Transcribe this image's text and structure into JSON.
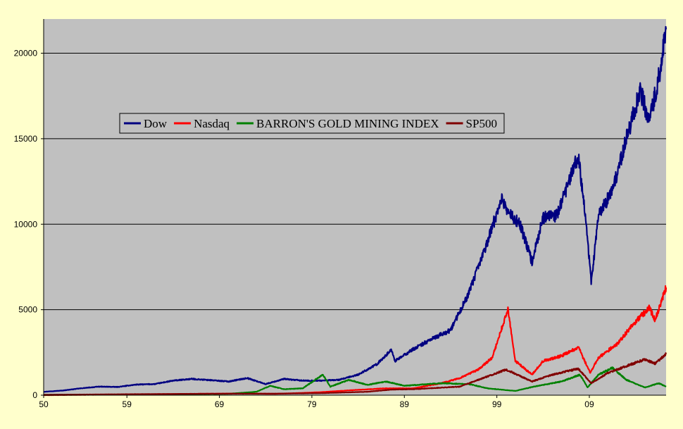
{
  "chart_data": {
    "type": "line",
    "title": "",
    "xlabel": "",
    "ylabel": "",
    "x_tick_labels": [
      "50",
      "59",
      "69",
      "79",
      "89",
      "99",
      "09"
    ],
    "x_tick_years": [
      1950,
      1959,
      1969,
      1979,
      1989,
      1999,
      2009
    ],
    "xlim": [
      1950,
      2017.3
    ],
    "ylim": [
      0,
      22000
    ],
    "y_ticks": [
      0,
      5000,
      10000,
      15000,
      20000
    ],
    "grid": "horizontal",
    "legend_position": "top-left",
    "colors": {
      "plot_background": "#C0C0C0",
      "page_background": "#FFFFCC",
      "gridline": "#000000"
    },
    "series": [
      {
        "name": "Dow",
        "color": "#000080",
        "points": [
          [
            1950,
            200
          ],
          [
            1952,
            270
          ],
          [
            1954,
            400
          ],
          [
            1956,
            500
          ],
          [
            1958,
            480
          ],
          [
            1960,
            620
          ],
          [
            1962,
            650
          ],
          [
            1964,
            850
          ],
          [
            1966,
            950
          ],
          [
            1968,
            880
          ],
          [
            1970,
            800
          ],
          [
            1972,
            1000
          ],
          [
            1974,
            650
          ],
          [
            1976,
            950
          ],
          [
            1978,
            850
          ],
          [
            1980,
            850
          ],
          [
            1982,
            900
          ],
          [
            1984,
            1200
          ],
          [
            1986,
            1800
          ],
          [
            1987.6,
            2650
          ],
          [
            1988,
            2000
          ],
          [
            1990,
            2700
          ],
          [
            1992,
            3300
          ],
          [
            1994,
            3800
          ],
          [
            1996,
            6000
          ],
          [
            1998,
            9000
          ],
          [
            1999.5,
            11500
          ],
          [
            2000.5,
            10500
          ],
          [
            2001.5,
            10000
          ],
          [
            2002.8,
            7800
          ],
          [
            2004,
            10400
          ],
          [
            2005.5,
            10500
          ],
          [
            2007.8,
            14000
          ],
          [
            2008.5,
            11000
          ],
          [
            2009.2,
            6600
          ],
          [
            2010,
            10500
          ],
          [
            2011.5,
            12000
          ],
          [
            2013,
            15000
          ],
          [
            2014.5,
            17800
          ],
          [
            2015.5,
            16000
          ],
          [
            2016.2,
            17800
          ],
          [
            2016.8,
            19500
          ],
          [
            2017.3,
            21400
          ]
        ]
      },
      {
        "name": "Nasdaq",
        "color": "#FF0000",
        "points": [
          [
            1950,
            0
          ],
          [
            1971,
            100
          ],
          [
            1975,
            80
          ],
          [
            1978,
            130
          ],
          [
            1980,
            180
          ],
          [
            1983,
            280
          ],
          [
            1987,
            400
          ],
          [
            1990,
            400
          ],
          [
            1993,
            700
          ],
          [
            1995,
            1000
          ],
          [
            1997,
            1500
          ],
          [
            1998.5,
            2200
          ],
          [
            2000.2,
            5000
          ],
          [
            2001,
            2000
          ],
          [
            2002.8,
            1200
          ],
          [
            2004,
            2000
          ],
          [
            2006,
            2300
          ],
          [
            2007.8,
            2800
          ],
          [
            2009.1,
            1300
          ],
          [
            2010,
            2200
          ],
          [
            2012,
            3000
          ],
          [
            2014,
            4300
          ],
          [
            2015.5,
            5100
          ],
          [
            2016.1,
            4400
          ],
          [
            2017.3,
            6300
          ]
        ]
      },
      {
        "name": "BARRON'S GOLD MINING INDEX",
        "color": "#008000",
        "points": [
          [
            1950,
            20
          ],
          [
            1960,
            40
          ],
          [
            1965,
            60
          ],
          [
            1970,
            80
          ],
          [
            1973,
            200
          ],
          [
            1974.5,
            550
          ],
          [
            1976,
            350
          ],
          [
            1978,
            400
          ],
          [
            1980.2,
            1200
          ],
          [
            1981,
            500
          ],
          [
            1983,
            900
          ],
          [
            1985,
            600
          ],
          [
            1987,
            800
          ],
          [
            1989,
            550
          ],
          [
            1993,
            700
          ],
          [
            1996,
            650
          ],
          [
            1998,
            400
          ],
          [
            2001,
            250
          ],
          [
            2003,
            500
          ],
          [
            2006,
            800
          ],
          [
            2008,
            1200
          ],
          [
            2008.8,
            450
          ],
          [
            2010,
            1200
          ],
          [
            2011.5,
            1600
          ],
          [
            2013,
            900
          ],
          [
            2015,
            450
          ],
          [
            2016.5,
            700
          ],
          [
            2017.3,
            500
          ]
        ]
      },
      {
        "name": "SP500",
        "color": "#800000",
        "points": [
          [
            1950,
            20
          ],
          [
            1960,
            60
          ],
          [
            1970,
            90
          ],
          [
            1975,
            90
          ],
          [
            1980,
            120
          ],
          [
            1985,
            200
          ],
          [
            1987.6,
            330
          ],
          [
            1990,
            350
          ],
          [
            1995,
            500
          ],
          [
            1998,
            1100
          ],
          [
            2000,
            1500
          ],
          [
            2002.8,
            800
          ],
          [
            2005,
            1200
          ],
          [
            2007.8,
            1550
          ],
          [
            2009.2,
            700
          ],
          [
            2011,
            1300
          ],
          [
            2013,
            1700
          ],
          [
            2015,
            2100
          ],
          [
            2016.1,
            1850
          ],
          [
            2017.3,
            2400
          ]
        ]
      }
    ]
  }
}
